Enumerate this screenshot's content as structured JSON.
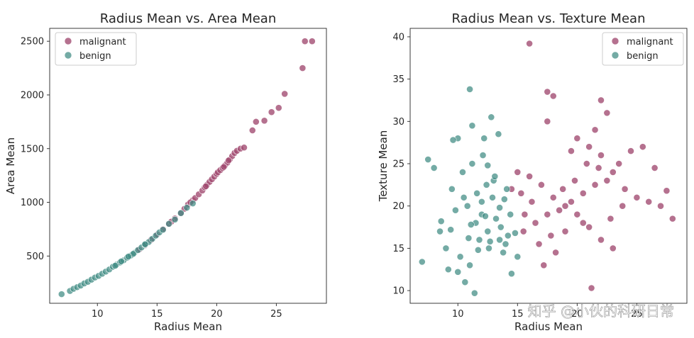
{
  "chart_data": [
    {
      "type": "scatter",
      "title": "Radius Mean vs. Area Mean",
      "xlabel": "Radius Mean",
      "ylabel": "Area Mean",
      "xlim": [
        6,
        29.2
      ],
      "ylim": [
        60,
        2620
      ],
      "xticks": [
        10,
        15,
        20,
        25
      ],
      "yticks": [
        500,
        1000,
        1500,
        2000,
        2500
      ],
      "legend_position": "top-left",
      "series": [
        {
          "name": "malignant",
          "color": "#a0496f",
          "x": [
            15.5,
            16.0,
            16.5,
            17.0,
            17.3,
            17.6,
            18.0,
            18.2,
            18.5,
            18.8,
            19.0,
            19.2,
            19.4,
            19.6,
            19.8,
            20.0,
            20.1,
            20.3,
            20.5,
            20.7,
            20.9,
            21.1,
            21.3,
            21.5,
            21.7,
            22.0,
            22.3,
            23.0,
            23.3,
            24.0,
            24.6,
            25.2,
            25.7,
            27.2,
            27.4,
            28.0,
            14.5,
            15.0,
            13.5,
            14.0,
            16.2,
            17.8,
            19.1,
            20.6,
            21.0
          ],
          "y": [
            750,
            800,
            850,
            900,
            940,
            980,
            1020,
            1040,
            1075,
            1110,
            1140,
            1165,
            1190,
            1215,
            1240,
            1265,
            1280,
            1300,
            1320,
            1345,
            1370,
            1400,
            1430,
            1460,
            1480,
            1500,
            1510,
            1670,
            1750,
            1760,
            1840,
            1880,
            2010,
            2250,
            2500,
            2500,
            650,
            700,
            560,
            600,
            820,
            1000,
            1150,
            1330,
            1390
          ]
        },
        {
          "name": "benign",
          "color": "#3f8a82",
          "x": [
            7.0,
            7.7,
            8.0,
            8.3,
            8.6,
            8.9,
            9.2,
            9.5,
            9.8,
            10.1,
            10.4,
            10.7,
            11.0,
            11.3,
            11.6,
            11.9,
            12.2,
            12.5,
            12.8,
            13.1,
            13.4,
            13.7,
            14.0,
            14.3,
            14.6,
            14.9,
            15.2,
            15.5,
            16.0,
            16.5,
            17.0,
            17.5,
            18.0,
            12.0,
            13.0,
            14.0,
            11.5,
            12.6
          ],
          "y": [
            145,
            175,
            195,
            210,
            225,
            245,
            260,
            280,
            300,
            315,
            335,
            355,
            375,
            400,
            420,
            440,
            460,
            485,
            505,
            530,
            555,
            580,
            605,
            630,
            660,
            690,
            720,
            745,
            800,
            840,
            900,
            950,
            990,
            450,
            520,
            610,
            410,
            495
          ]
        }
      ]
    },
    {
      "type": "scatter",
      "title": "Radius Mean vs. Texture Mean",
      "xlabel": "Radius Mean",
      "ylabel": "Texture Mean",
      "xlim": [
        6,
        29.2
      ],
      "ylim": [
        8.5,
        41
      ],
      "xticks": [
        10,
        15,
        20,
        25
      ],
      "yticks": [
        10,
        15,
        20,
        25,
        30,
        35,
        40
      ],
      "legend_position": "top-right",
      "series": [
        {
          "name": "malignant",
          "color": "#a0496f",
          "x": [
            16.0,
            17.5,
            18.0,
            17.5,
            22.0,
            22.5,
            21.5,
            20.0,
            19.5,
            21.0,
            22.0,
            23.0,
            24.0,
            25.0,
            26.0,
            27.0,
            28.0,
            27.5,
            26.5,
            25.5,
            24.5,
            23.5,
            22.5,
            21.5,
            20.5,
            19.5,
            18.5,
            17.5,
            16.5,
            15.5,
            14.5,
            15.0,
            16.0,
            17.0,
            18.0,
            19.0,
            20.0,
            21.0,
            22.0,
            23.0,
            20.5,
            19.0,
            17.8,
            16.8,
            18.8,
            21.8,
            23.8,
            16.2,
            15.6,
            19.8,
            20.8,
            22.8,
            18.2,
            17.2,
            15.3,
            21.2
          ],
          "y": [
            39.2,
            33.5,
            33.0,
            30.0,
            32.5,
            31.0,
            29.0,
            28.0,
            26.5,
            27.0,
            26.0,
            24.0,
            22.0,
            21.0,
            20.5,
            20.0,
            18.5,
            21.8,
            24.5,
            27.0,
            26.5,
            25.0,
            23.0,
            22.5,
            21.5,
            20.5,
            19.5,
            19.0,
            18.0,
            17.0,
            22.0,
            24.0,
            23.5,
            22.5,
            21.0,
            20.0,
            19.0,
            17.5,
            16.0,
            15.0,
            18.0,
            17.0,
            16.5,
            15.5,
            22.0,
            24.5,
            20.0,
            20.5,
            19.0,
            23.0,
            25.0,
            18.5,
            14.5,
            13.0,
            21.5,
            10.3
          ]
        },
        {
          "name": "benign",
          "color": "#3f8a82",
          "x": [
            7.5,
            8.0,
            8.5,
            9.0,
            9.5,
            10.0,
            10.5,
            11.0,
            11.5,
            12.0,
            12.5,
            13.0,
            13.5,
            14.0,
            14.5,
            15.0,
            11.2,
            12.8,
            13.4,
            12.2,
            10.8,
            11.6,
            12.4,
            13.2,
            14.2,
            9.8,
            10.2,
            11.0,
            11.8,
            12.6,
            13.6,
            14.4,
            9.2,
            10.6,
            11.4,
            12.0,
            12.9,
            13.8,
            14.8,
            8.6,
            9.6,
            10.4,
            11.2,
            12.1,
            13.1,
            14.1,
            7.0,
            11.1,
            12.3,
            13.5,
            10.0,
            11.7,
            12.7,
            13.9,
            9.4,
            10.9,
            12.5
          ],
          "y": [
            25.5,
            24.5,
            17.0,
            15.0,
            22.0,
            28.0,
            21.0,
            33.8,
            18.0,
            19.0,
            17.0,
            23.0,
            16.0,
            15.5,
            12.0,
            14.0,
            29.5,
            30.5,
            28.5,
            28.0,
            20.0,
            21.5,
            22.5,
            18.5,
            16.5,
            19.5,
            14.0,
            13.0,
            16.0,
            15.0,
            17.5,
            19.0,
            12.5,
            11.0,
            9.7,
            20.5,
            21.0,
            14.5,
            16.8,
            18.2,
            27.8,
            24.0,
            25.0,
            26.0,
            23.5,
            22.0,
            13.4,
            17.8,
            18.8,
            19.8,
            12.2,
            14.8,
            15.8,
            20.8,
            17.2,
            16.2,
            24.8
          ]
        }
      ]
    }
  ],
  "watermark": {
    "text": "知乎 @小伙的科研日常"
  }
}
